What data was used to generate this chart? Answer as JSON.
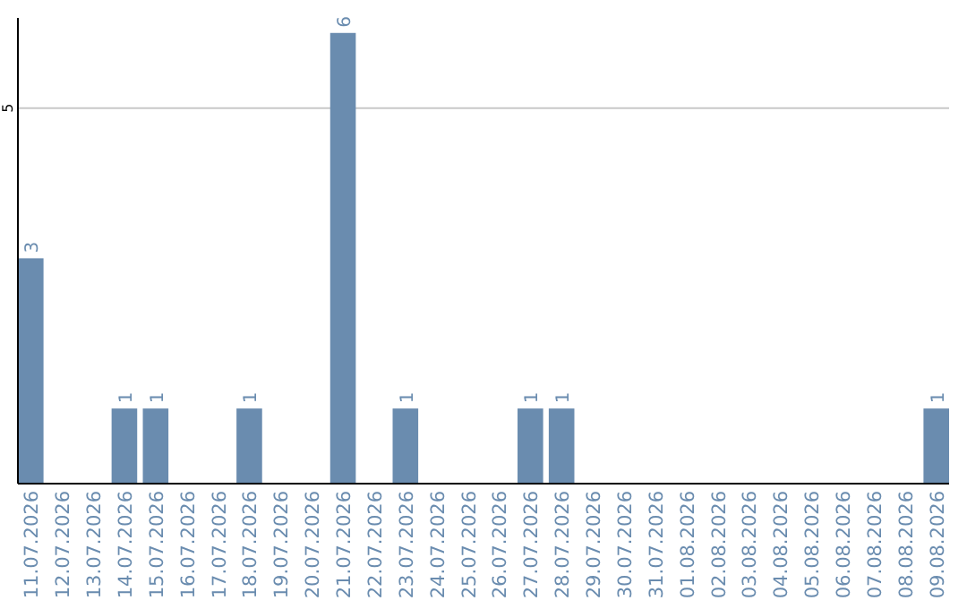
{
  "chart_data": {
    "type": "bar",
    "categories": [
      "11.07.2026",
      "12.07.2026",
      "13.07.2026",
      "14.07.2026",
      "15.07.2026",
      "16.07.2026",
      "17.07.2026",
      "18.07.2026",
      "19.07.2026",
      "20.07.2026",
      "21.07.2026",
      "22.07.2026",
      "23.07.2026",
      "24.07.2026",
      "25.07.2026",
      "26.07.2026",
      "27.07.2026",
      "28.07.2026",
      "29.07.2026",
      "30.07.2026",
      "31.07.2026",
      "01.08.2026",
      "02.08.2026",
      "03.08.2026",
      "04.08.2026",
      "05.08.2026",
      "06.08.2026",
      "07.08.2026",
      "08.08.2026",
      "09.08.2026"
    ],
    "values": [
      3,
      0,
      0,
      1,
      1,
      0,
      0,
      1,
      0,
      0,
      6,
      0,
      1,
      0,
      0,
      0,
      1,
      1,
      0,
      0,
      0,
      0,
      0,
      0,
      0,
      0,
      0,
      0,
      0,
      1
    ],
    "value_labels": [
      "3",
      null,
      null,
      "1",
      "1",
      null,
      null,
      "1",
      null,
      null,
      "6",
      null,
      "1",
      null,
      null,
      null,
      "1",
      "1",
      null,
      null,
      null,
      null,
      null,
      null,
      null,
      null,
      null,
      null,
      null,
      "1"
    ],
    "color": "#6a8caf",
    "ylim": [
      0,
      6.2
    ],
    "yticks": [
      5
    ],
    "grid": "y"
  }
}
